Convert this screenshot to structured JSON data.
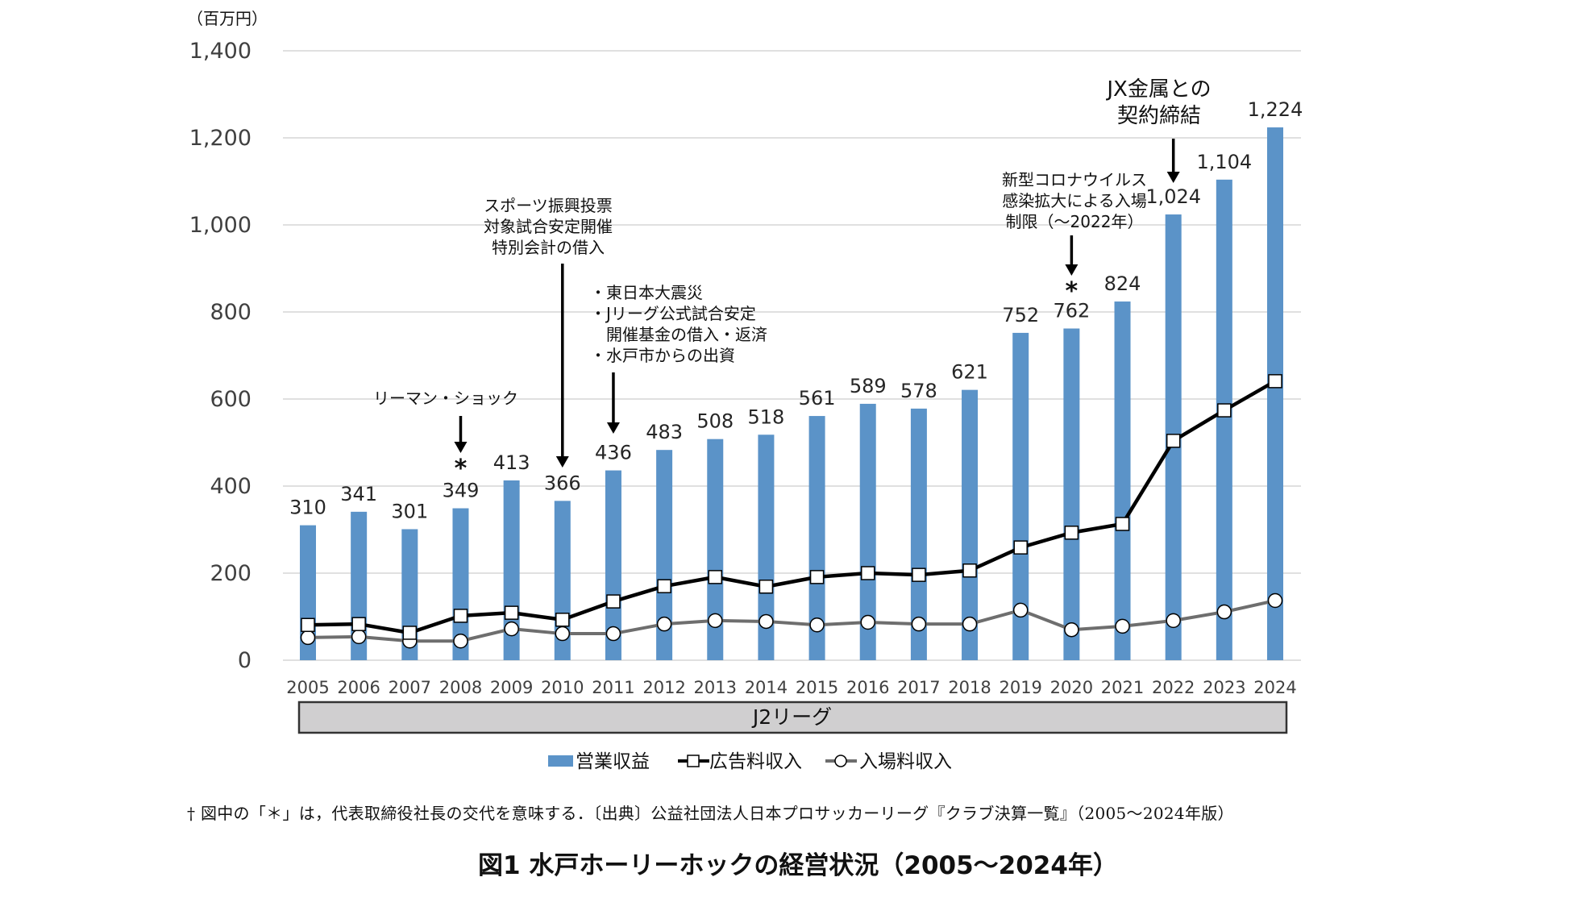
{
  "chart_data": {
    "type": "bar",
    "title": "図1 水戸ホーリーホックの経営状況（2005〜2024年）",
    "ylabel": "（百万円）",
    "xlabel": "",
    "ylim": [
      0,
      1400
    ],
    "yticks": [
      0,
      200,
      400,
      600,
      800,
      1000,
      1200,
      1400
    ],
    "ytick_labels": [
      "0",
      "200",
      "400",
      "600",
      "800",
      "1,000",
      "1,200",
      "1,400"
    ],
    "grid": true,
    "legend_position": "bottom",
    "categories": [
      "2005",
      "2006",
      "2007",
      "2008",
      "2009",
      "2010",
      "2011",
      "2012",
      "2013",
      "2014",
      "2015",
      "2016",
      "2017",
      "2018",
      "2019",
      "2020",
      "2021",
      "2022",
      "2023",
      "2024"
    ],
    "series": [
      {
        "name": "営業収益",
        "type": "bar",
        "color": "#5b93c8",
        "values": [
          310,
          341,
          301,
          349,
          413,
          366,
          436,
          483,
          508,
          518,
          561,
          589,
          578,
          621,
          752,
          762,
          824,
          1024,
          1104,
          1224
        ],
        "labels": [
          "310",
          "341",
          "301",
          "349",
          "413",
          "366",
          "436",
          "483",
          "508",
          "518",
          "561",
          "589",
          "578",
          "621",
          "752",
          "762",
          "824",
          "1,024",
          "1,104",
          "1,224"
        ]
      },
      {
        "name": "広告料収入",
        "type": "line",
        "marker": "square",
        "color": "#000000",
        "values": [
          81,
          83,
          63,
          102,
          109,
          93,
          135,
          170,
          191,
          169,
          191,
          200,
          196,
          206,
          259,
          293,
          313,
          504,
          574,
          641
        ]
      },
      {
        "name": "入場料収入",
        "type": "line",
        "marker": "circle",
        "color": "#6e6e6e",
        "values": [
          52,
          54,
          44,
          44,
          72,
          61,
          61,
          83,
          91,
          89,
          81,
          87,
          83,
          83,
          115,
          70,
          78,
          91,
          111,
          137
        ]
      }
    ],
    "annotations": [
      {
        "year": "2008",
        "lines": [
          "リーマン・ショック"
        ],
        "star": true
      },
      {
        "year": "2010",
        "lines": [
          "スポーツ振興投票",
          "対象試合安定開催",
          "特別会計の借入"
        ],
        "star": false
      },
      {
        "year": "2011",
        "lines": [
          "・東日本大震災",
          "・Jリーグ公式試合安定",
          "　開催基金の借入・返済",
          "・水戸市からの出資"
        ],
        "star": false
      },
      {
        "year": "2020",
        "lines": [
          "新型コロナウイルス",
          "感染拡大による入場",
          "制限（〜2022年）"
        ],
        "star": true
      },
      {
        "year": "2022",
        "lines": [
          "JX金属との",
          "契約締結"
        ],
        "star": false
      }
    ],
    "star_symbol": "*",
    "league_band": "J2リーグ"
  },
  "footnote": "†  図中の「＊」は，代表取締役社長の交代を意味する．〔出典〕公益社団法人日本プロサッカーリーグ『クラブ決算一覧』（2005〜2024年版）",
  "caption": "図1 水戸ホーリーホックの経営状況（2005〜2024年）"
}
